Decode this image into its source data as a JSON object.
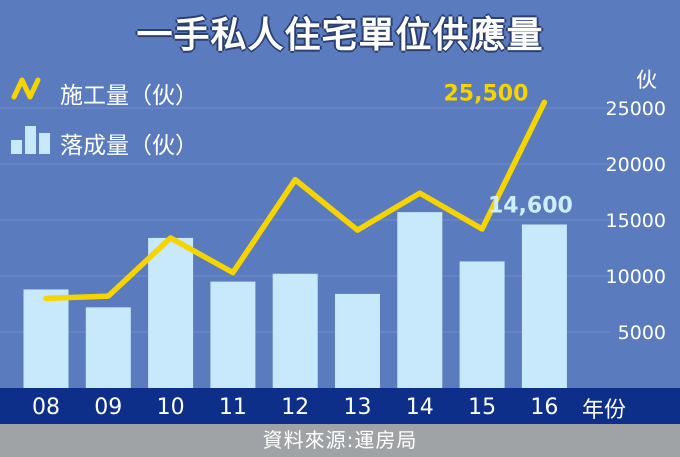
{
  "title": "一手私人住宅單位供應量",
  "legend": {
    "line_label": "施工量（伙）",
    "bar_label": "落成量（伙）"
  },
  "y_unit": "伙",
  "x_unit": "年份",
  "source": "資料來源:運房局",
  "colors": {
    "background": "#5a7bbd",
    "bar": "#c7e9fb",
    "line": "#f5d400",
    "axis_band": "#0d2f8a",
    "footer": "#9fa3a6",
    "bar_label": "#cfeefc",
    "line_label": "#f5d400"
  },
  "chart_data": {
    "type": "bar",
    "categories": [
      "08",
      "09",
      "10",
      "11",
      "12",
      "13",
      "14",
      "15",
      "16"
    ],
    "series": [
      {
        "name": "落成量（伙）",
        "type": "bar",
        "values": [
          8800,
          7200,
          13400,
          9500,
          10200,
          8400,
          15700,
          11300,
          14600
        ]
      },
      {
        "name": "施工量（伙）",
        "type": "line",
        "values": [
          8000,
          8200,
          13400,
          10300,
          18600,
          14100,
          17400,
          14200,
          25500
        ]
      }
    ],
    "annotations": [
      {
        "series": "施工量（伙）",
        "category": "16",
        "text": "25,500"
      },
      {
        "series": "落成量（伙）",
        "category": "16",
        "text": "14,600"
      }
    ],
    "yticks": [
      "5000",
      "10000",
      "15000",
      "20000",
      "25000"
    ],
    "ylim": [
      0,
      27000
    ],
    "grid": true
  }
}
